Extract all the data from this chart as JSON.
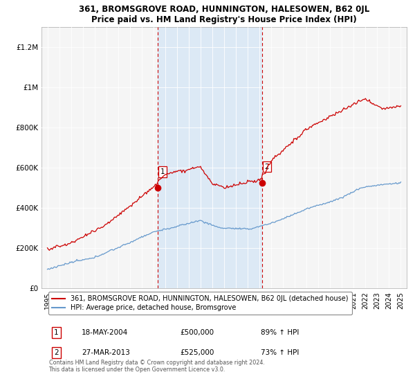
{
  "title": "361, BROMSGROVE ROAD, HUNNINGTON, HALESOWEN, B62 0JL",
  "subtitle": "Price paid vs. HM Land Registry's House Price Index (HPI)",
  "footnote": "Contains HM Land Registry data © Crown copyright and database right 2024.\nThis data is licensed under the Open Government Licence v3.0.",
  "legend_red": "361, BROMSGROVE ROAD, HUNNINGTON, HALESOWEN, B62 0JL (detached house)",
  "legend_blue": "HPI: Average price, detached house, Bromsgrove",
  "transaction1_label": "1",
  "transaction1_date": "18-MAY-2004",
  "transaction1_price": "£500,000",
  "transaction1_hpi": "89% ↑ HPI",
  "transaction2_label": "2",
  "transaction2_date": "27-MAR-2013",
  "transaction2_price": "£525,000",
  "transaction2_hpi": "73% ↑ HPI",
  "background_color": "#ffffff",
  "plot_bg_color": "#f0f0f0",
  "shade_color": "#dce9f5",
  "red_line_color": "#cc0000",
  "blue_line_color": "#6699cc",
  "vline_color": "#cc0000",
  "marker1_x": 2004.38,
  "marker1_y": 500000,
  "marker2_x": 2013.24,
  "marker2_y": 525000,
  "ylim_min": 0,
  "ylim_max": 1300000,
  "xlim_min": 1994.5,
  "xlim_max": 2025.5,
  "yticks": [
    0,
    200000,
    400000,
    600000,
    800000,
    1000000,
    1200000
  ],
  "ytick_labels": [
    "£0",
    "£200K",
    "£400K",
    "£600K",
    "£800K",
    "£1M",
    "£1.2M"
  ],
  "xticks": [
    1995,
    1996,
    1997,
    1998,
    1999,
    2000,
    2001,
    2002,
    2003,
    2004,
    2005,
    2006,
    2007,
    2008,
    2009,
    2010,
    2011,
    2012,
    2013,
    2014,
    2015,
    2016,
    2017,
    2018,
    2019,
    2020,
    2021,
    2022,
    2023,
    2024,
    2025
  ]
}
